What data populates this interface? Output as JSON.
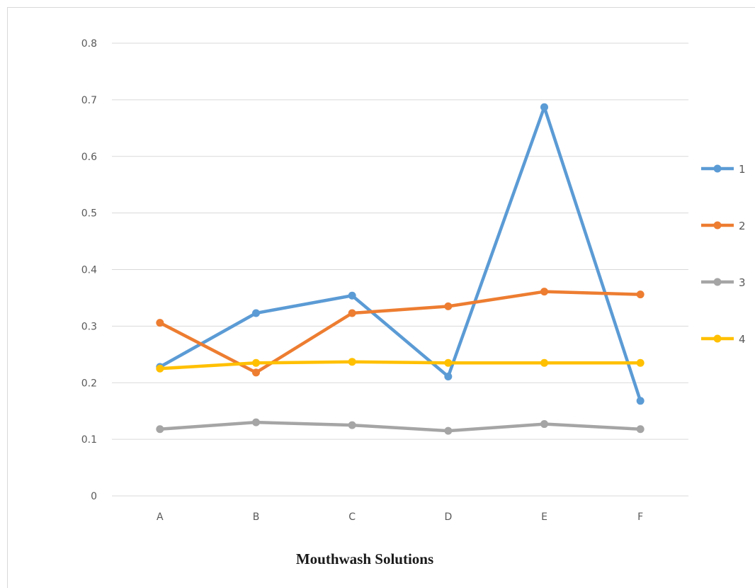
{
  "chart_data": {
    "type": "line",
    "title": "",
    "xlabel": "Mouthwash Solutions",
    "ylabel": "",
    "categories": [
      "A",
      "B",
      "C",
      "D",
      "E",
      "F"
    ],
    "ylim": [
      0,
      0.8
    ],
    "yticks": [
      "0",
      "0.1",
      "0.2",
      "0.3",
      "0.4",
      "0.5",
      "0.6",
      "0.7",
      "0.8"
    ],
    "grid": true,
    "legend_position": "right",
    "series": [
      {
        "name": "1",
        "color": "#5b9bd5",
        "values": [
          0.228,
          0.323,
          0.354,
          0.211,
          0.687,
          0.168
        ]
      },
      {
        "name": "2",
        "color": "#ed7d31",
        "values": [
          0.306,
          0.218,
          0.323,
          0.335,
          0.361,
          0.356
        ]
      },
      {
        "name": "3",
        "color": "#a5a5a5",
        "values": [
          0.118,
          0.13,
          0.125,
          0.115,
          0.127,
          0.118
        ]
      },
      {
        "name": "4",
        "color": "#ffc000",
        "values": [
          0.225,
          0.235,
          0.237,
          0.235,
          0.235,
          0.235
        ]
      }
    ]
  }
}
